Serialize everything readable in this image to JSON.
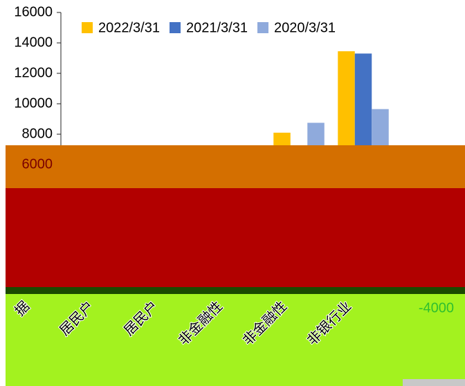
{
  "chart_data": {
    "type": "bar",
    "categories": [
      "据",
      "居民户",
      "居民户",
      "非金融性",
      "非金融性",
      "非银行业"
    ],
    "series": [
      {
        "name": "2022/3/31",
        "color": "#ffc000",
        "values": [
          null,
          null,
          null,
          null,
          8100,
          13450
        ]
      },
      {
        "name": "2021/3/31",
        "color": "#4472c4",
        "values": [
          null,
          null,
          null,
          null,
          null,
          13300
        ]
      },
      {
        "name": "2020/3/31",
        "color": "#8faadc",
        "values": [
          null,
          null,
          null,
          null,
          8750,
          9650
        ]
      }
    ],
    "ylim": [
      -4000,
      16000
    ],
    "yticks": [
      16000,
      14000,
      12000,
      10000,
      8000,
      6000,
      -4000
    ],
    "legend": "top"
  }
}
